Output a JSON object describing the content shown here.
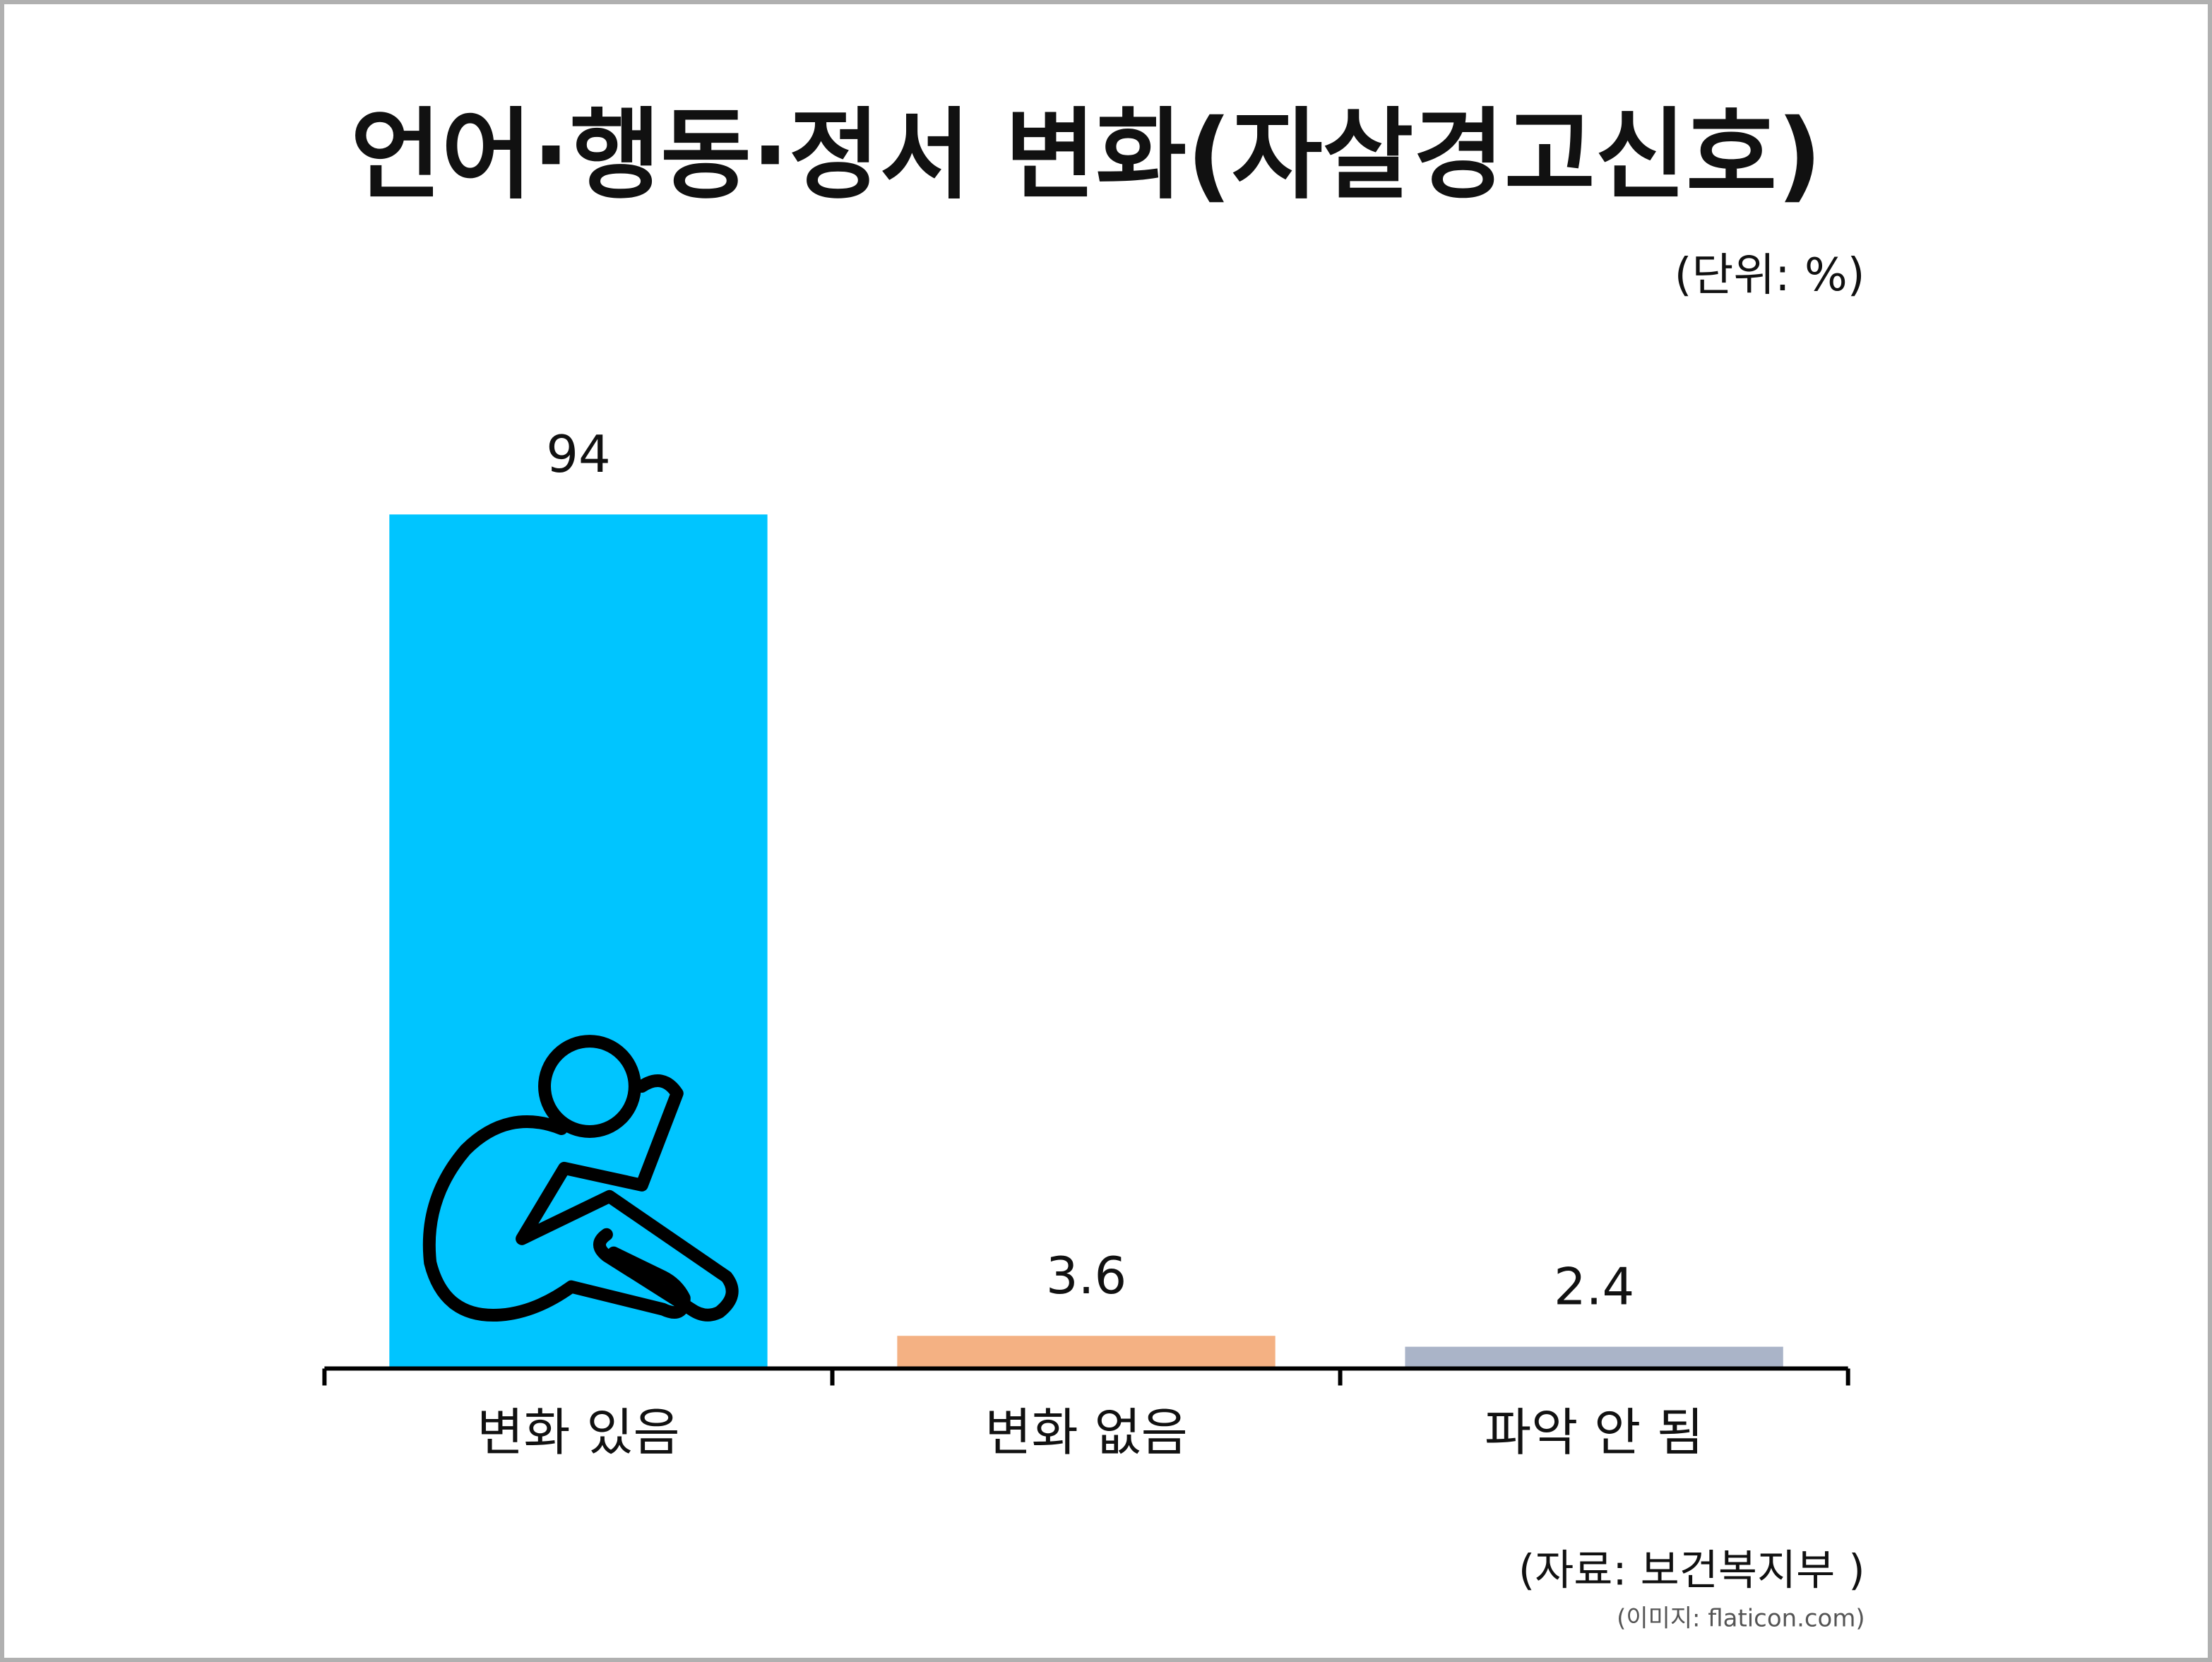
{
  "chart_data": {
    "type": "bar",
    "title": "언어·행동·정서 변화(자살경고신호)",
    "unit": "(단위: %)",
    "categories": [
      "변화 있음",
      "변화 없음",
      "파악 안 됨"
    ],
    "values": [
      94,
      3.6,
      2.4
    ],
    "colors": [
      "#00c5ff",
      "#f4b183",
      "#aab4c8"
    ],
    "ylim": [
      0,
      100
    ],
    "source": "(자료: 보건복지부 )",
    "image_credit": "(이미지: flaticon.com)"
  }
}
